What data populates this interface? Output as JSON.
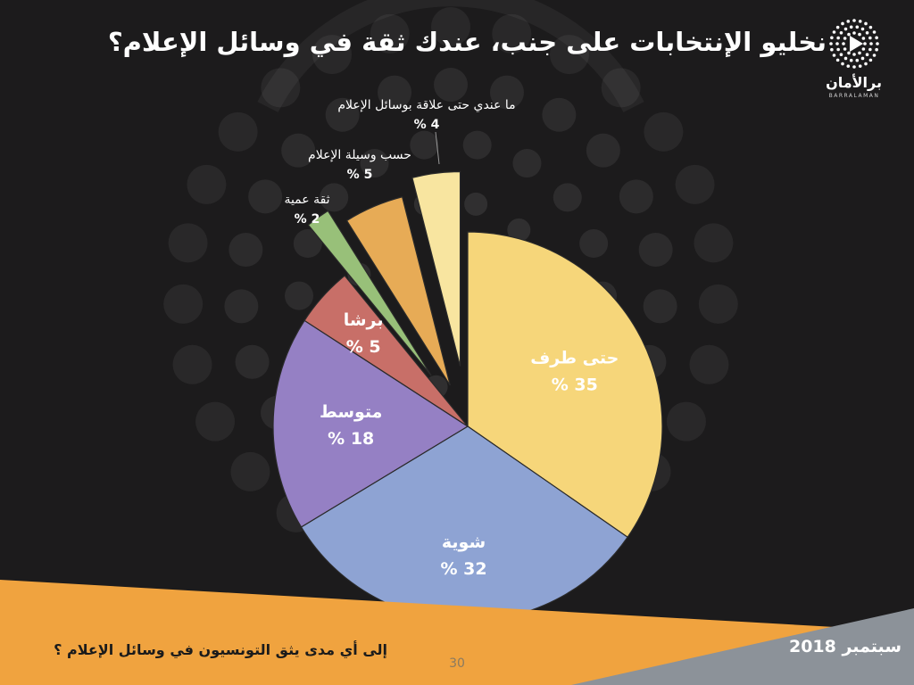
{
  "slide": {
    "title": "نخليو الإنتخابات على جنب، عندك ثقة في وسائل الإعلام؟",
    "logo_name": "برالأمان",
    "logo_sub": "BARRALAMAN",
    "footer_question": "إلى أي مدى يثق التونسيون في وسائل الإعلام ؟",
    "footer_date": "سبتمبر 2018",
    "page_number": "30"
  },
  "colors": {
    "background": "#1c1b1c",
    "footer_orange": "#f0a33f",
    "footer_gray": "#8c9299",
    "label_dark": "#ffffff"
  },
  "chart_data": {
    "type": "pie",
    "title": "",
    "slices": [
      {
        "label": "حتى طرف",
        "value": 35,
        "value_text": "35 %",
        "color": "#f6d67a",
        "exploded": false,
        "label_position": "inside"
      },
      {
        "label": "شوية",
        "value": 32,
        "value_text": "32 %",
        "color": "#8ea3d3",
        "exploded": false,
        "label_position": "inside"
      },
      {
        "label": "متوسط",
        "value": 18,
        "value_text": "18 %",
        "color": "#9580c4",
        "exploded": false,
        "label_position": "inside"
      },
      {
        "label": "برشا",
        "value": 5,
        "value_text": "5 %",
        "color": "#c86f68",
        "exploded": false,
        "label_position": "inside"
      },
      {
        "label": "ثقة عمية",
        "value": 2,
        "value_text": "2 %",
        "color": "#98c079",
        "exploded": true,
        "label_position": "outside"
      },
      {
        "label": "حسب وسيلة الإعلام",
        "value": 5,
        "value_text": "5 %",
        "color": "#e7ab56",
        "exploded": true,
        "label_position": "outside"
      },
      {
        "label": "ما عندي حتى علاقة بوسائل الإعلام",
        "value": 4,
        "value_text": "4 %",
        "color": "#f8e5a0",
        "exploded": true,
        "label_position": "outside"
      }
    ],
    "legend": "none"
  }
}
